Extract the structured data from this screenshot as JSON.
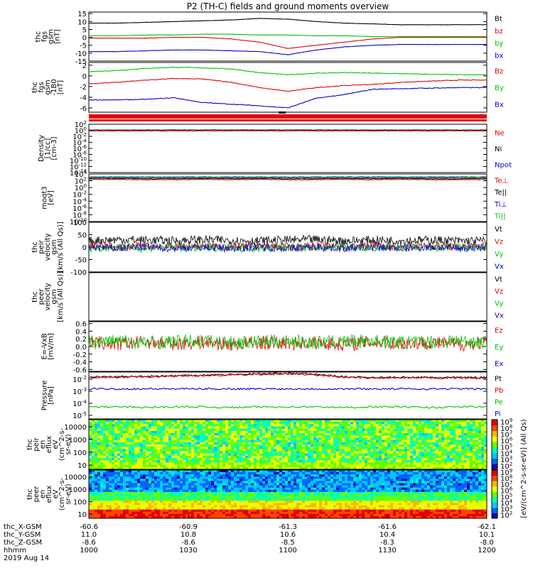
{
  "title": "P2 (TH-C) fields and ground moments overview",
  "footer": {
    "rows": [
      {
        "label": "thc_X-GSM",
        "values": [
          "-60.6",
          "-60.9",
          "-61.3",
          "-61.6",
          "-62.1"
        ]
      },
      {
        "label": "thc_Y-GSM",
        "values": [
          "11.0",
          "10.8",
          "10.6",
          "10.4",
          "10.1"
        ]
      },
      {
        "label": "thc_Z-GSM",
        "values": [
          "-8.6",
          "-8.6",
          "-8.5",
          "-8.3",
          "-8.0"
        ]
      },
      {
        "label": "hhmm",
        "values": [
          "1000",
          "1030",
          "1100",
          "1130",
          "1200"
        ]
      }
    ],
    "date": "2019 Aug 14"
  },
  "colorbar": {
    "label": "[eV/(cm^2-s-sr-eV)] (All Qs)",
    "colors": [
      "#1a00b4",
      "#0064ff",
      "#00c8ff",
      "#00ffb4",
      "#64ff00",
      "#e6ff00",
      "#ffb400",
      "#ff4600",
      "#e60000"
    ]
  },
  "chart_data": [
    {
      "type": "line",
      "panel": 0,
      "ylabel": [
        "thc",
        "fgs",
        "gsm",
        "[nT]"
      ],
      "yticks": [
        "15",
        "10",
        "5",
        "0",
        "-5",
        "-10",
        "-15"
      ],
      "ylim": [
        -15,
        16
      ],
      "series": [
        {
          "name": "Bt",
          "color": "#000000",
          "y": [
            9,
            9,
            9.5,
            10,
            10.5,
            11,
            12,
            11.5,
            10,
            9,
            8.5,
            8,
            8,
            8,
            8
          ]
        },
        {
          "name": "bz",
          "color": "#e00000",
          "y": [
            -0.5,
            -0.5,
            -0.5,
            0,
            0,
            -1,
            -3,
            -7,
            -5,
            -3,
            -1,
            0,
            0,
            0,
            0
          ]
        },
        {
          "name": "by",
          "color": "#00c000",
          "y": [
            1,
            1,
            1.5,
            1.5,
            2,
            2,
            1.5,
            1.5,
            1,
            1,
            0.5,
            0.5,
            0.5,
            0.5,
            0.5
          ]
        },
        {
          "name": "bx",
          "color": "#0000d0",
          "y": [
            -9,
            -9,
            -8.5,
            -8,
            -8,
            -8.5,
            -9,
            -11,
            -8,
            -6,
            -5,
            -4.5,
            -4.5,
            -4.5,
            -4.5
          ]
        }
      ]
    },
    {
      "type": "line",
      "panel": 1,
      "ylabel": [
        "thc",
        "fgs",
        "gsm",
        "-1B0",
        "[nT]"
      ],
      "yticks": [
        "2",
        "0",
        "-2",
        "-4",
        "-6"
      ],
      "ylim": [
        -6.8,
        2.5
      ],
      "series": [
        {
          "name": "Bz",
          "color": "#e00000",
          "y": [
            -1.5,
            -1.2,
            -0.8,
            -0.5,
            -0.6,
            -1.2,
            -2.2,
            -2.9,
            -2.2,
            -1.8,
            -1.6,
            -1.2,
            -1,
            -0.8,
            -0.8
          ]
        },
        {
          "name": "By",
          "color": "#00c000",
          "y": [
            0.8,
            1,
            1.4,
            1.6,
            1.5,
            1.3,
            0.6,
            0.2,
            0.5,
            0.6,
            0.5,
            0.4,
            0.3,
            0.2,
            0.2
          ]
        },
        {
          "name": "Bx",
          "color": "#0000d0",
          "y": [
            -4.5,
            -4.5,
            -4.4,
            -4.1,
            -5,
            -5.3,
            -5.6,
            -6,
            -4.2,
            -3.5,
            -2.5,
            -2.4,
            -2.3,
            -2.2,
            -2.2
          ]
        }
      ]
    },
    {
      "type": "line",
      "panel": 2,
      "scale": "log",
      "ylabel": [
        "Density",
        "[1/cc]",
        "[cm-3]"
      ],
      "yticks": [
        "10^2",
        "10^0",
        "10^-2",
        "10^-4",
        "10^-6",
        "10^-8",
        "10^-10",
        "10^-12",
        "10^-14"
      ],
      "ylim": [
        -14,
        2
      ],
      "series": [
        {
          "name": "Ne",
          "color": "#e00000",
          "y": [
            -0.2,
            -0.2,
            -0.2,
            -0.2,
            -0.2,
            -0.2,
            -0.2,
            -0.2,
            -0.2,
            -0.2,
            -0.2,
            -0.2,
            -0.2,
            -0.2,
            -0.2
          ]
        },
        {
          "name": "Ni",
          "color": "#000000",
          "y": [
            0.1,
            0.1,
            0.1,
            0.1,
            0.1,
            0.1,
            0.1,
            0.1,
            0.1,
            0.1,
            0.1,
            0.1,
            0.1,
            0.1,
            0.1
          ]
        },
        {
          "name": "Npot",
          "color": "#0000d0",
          "y": []
        }
      ]
    },
    {
      "type": "line",
      "panel": 3,
      "scale": "log",
      "ylabel": [
        "moqt3",
        "[eV]"
      ],
      "yticks": [
        "10^4",
        "10^2",
        "10^0",
        "10^-2",
        "10^-4",
        "10^-6",
        "10^-8",
        "10^-10"
      ],
      "ylim": [
        -10,
        4
      ],
      "series": [
        {
          "name": "Te⊥",
          "color": "#e00000",
          "y": [
            2.4,
            2.4,
            2.3,
            2.3,
            2.4,
            2.3,
            2.4,
            2.3,
            2.3,
            2.4,
            2.3,
            2.4,
            2.3,
            2.3,
            2.4
          ]
        },
        {
          "name": "Te||",
          "color": "#000000",
          "y": [
            2.7,
            2.7,
            2.6,
            2.6,
            2.7,
            2.6,
            2.7,
            2.6,
            2.6,
            2.7,
            2.6,
            2.7,
            2.6,
            2.6,
            2.7
          ]
        },
        {
          "name": "Ti⊥",
          "color": "#0000d0",
          "y": [
            3.1,
            3.1,
            3.1,
            3.1,
            3.1,
            3.1,
            3.1,
            3.1,
            3.1,
            3.1,
            3.1,
            3.1,
            3.1,
            3.1,
            3.1
          ]
        },
        {
          "name": "Ti||",
          "color": "#00c000",
          "y": [
            2.9,
            2.9,
            2.9,
            2.9,
            2.9,
            2.9,
            2.9,
            2.9,
            2.9,
            2.9,
            2.9,
            2.9,
            2.9,
            2.9,
            2.9
          ]
        }
      ]
    },
    {
      "type": "line",
      "panel": 4,
      "ylabel": [
        "thc",
        "peir",
        "velocity",
        "gsm",
        "[km/s (All Qs)]"
      ],
      "yticks": [
        "100",
        "50",
        "0",
        "-50",
        "-100"
      ],
      "ylim": [
        -100,
        100
      ],
      "series": [
        {
          "name": "Vt",
          "color": "#000000",
          "y": [
            25,
            30,
            28,
            25,
            30,
            27,
            25,
            28,
            30,
            25,
            28,
            26,
            28,
            25,
            25
          ]
        },
        {
          "name": "Vz",
          "color": "#e00000",
          "y": [
            5,
            0,
            5,
            0,
            5,
            0,
            5,
            0,
            5,
            0,
            5,
            0,
            5,
            0,
            5
          ]
        },
        {
          "name": "Vy",
          "color": "#00c000",
          "y": [
            -5,
            0,
            -5,
            0,
            -5,
            0,
            -5,
            0,
            -5,
            0,
            -5,
            0,
            -5,
            0,
            -5
          ]
        },
        {
          "name": "Vx",
          "color": "#0000d0",
          "y": [
            0,
            -5,
            0,
            -5,
            0,
            -5,
            0,
            -5,
            0,
            -5,
            0,
            -5,
            0,
            -5,
            0
          ]
        }
      ]
    },
    {
      "type": "line",
      "panel": 5,
      "ylabel": [
        "thc",
        "peer",
        "velocity",
        "gsm",
        "[km/s (All Qs)]"
      ],
      "yticks": [],
      "series": [
        {
          "name": "Vt",
          "color": "#000000",
          "y": []
        },
        {
          "name": "Vz",
          "color": "#e00000",
          "y": []
        },
        {
          "name": "Vy",
          "color": "#00c000",
          "y": []
        },
        {
          "name": "Vx",
          "color": "#0000d0",
          "y": []
        }
      ]
    },
    {
      "type": "line",
      "panel": 6,
      "ylabel": [
        "E=-VxB",
        "[mV/m]"
      ],
      "yticks": [
        "0.6",
        "0.4",
        "0.2",
        "0.0",
        "-0.2",
        "-0.4",
        "-0.6"
      ],
      "ylim": [
        -0.65,
        0.65
      ],
      "series": [
        {
          "name": "Ez",
          "color": "#e00000",
          "y": [
            0.1,
            0.05,
            0.12,
            0.08,
            0.1,
            0.05,
            0.1,
            0.08,
            0.1,
            0.05,
            0.12,
            0.08,
            0.1,
            0.05,
            0.1
          ]
        },
        {
          "name": "Ey",
          "color": "#00c000",
          "y": [
            0.12,
            0.15,
            0.1,
            0.12,
            0.15,
            0.1,
            0.12,
            0.15,
            0.1,
            0.12,
            0.15,
            0.1,
            0.12,
            0.15,
            0.1
          ]
        },
        {
          "name": "Ex",
          "color": "#0000d0",
          "y": []
        }
      ]
    },
    {
      "type": "line",
      "panel": 7,
      "scale": "log",
      "ylabel": [
        "Pressure",
        "[nPa]"
      ],
      "yticks": [
        "10^-2",
        "10^-3",
        "10^-4",
        "10^-5"
      ],
      "ylim": [
        -5.3,
        -1.4
      ],
      "series": [
        {
          "name": "Pt",
          "color": "#000000",
          "y": [
            -1.8,
            -1.8,
            -1.75,
            -1.7,
            -1.65,
            -1.6,
            -1.55,
            -1.5,
            -1.6,
            -1.8,
            -1.85,
            -1.85,
            -1.85,
            -1.85,
            -1.85
          ]
        },
        {
          "name": "Pb",
          "color": "#e00000",
          "y": [
            -1.85,
            -1.85,
            -1.8,
            -1.75,
            -1.7,
            -1.65,
            -1.6,
            -1.55,
            -1.65,
            -1.85,
            -1.9,
            -1.9,
            -1.9,
            -1.9,
            -1.9
          ]
        },
        {
          "name": "Pe",
          "color": "#00c000",
          "y": [
            -4.3,
            -4.3,
            -4.35,
            -4.3,
            -4.3,
            -4.35,
            -4.3,
            -4.3,
            -4.3,
            -4.35,
            -4.3,
            -4.3,
            -4.35,
            -4.3,
            -4.3
          ]
        },
        {
          "name": "Pi",
          "color": "#0000d0",
          "y": [
            -2.8,
            -2.8,
            -2.8,
            -2.8,
            -2.8,
            -2.8,
            -2.8,
            -2.8,
            -2.8,
            -2.8,
            -2.8,
            -2.8,
            -2.8,
            -2.8,
            -2.8
          ]
        }
      ]
    },
    {
      "type": "heatmap",
      "panel": 8,
      "scale": "log",
      "ylabel": [
        "thc",
        "peir",
        "en",
        "eflux",
        "eV",
        "(cm^2-s-",
        "sr-eV)"
      ],
      "yticks": [
        "10000",
        "1000",
        "100",
        "10"
      ],
      "cbar_ticks": [
        "10^9",
        "10^8",
        "10^7",
        "10^6",
        "10^5",
        "10^4",
        "10^3",
        "10^2"
      ]
    },
    {
      "type": "heatmap",
      "panel": 9,
      "scale": "log",
      "ylabel": [
        "thc",
        "peer",
        "en",
        "eflux",
        "eV",
        "(cm^2-s-",
        "sr-eV)"
      ],
      "yticks": [
        "10000",
        "1000",
        "100",
        "10"
      ],
      "cbar_ticks": [
        "10^9",
        "10^8",
        "10^7",
        "10^6",
        "10^5",
        "10^4",
        "10^3",
        "10^2"
      ]
    }
  ]
}
